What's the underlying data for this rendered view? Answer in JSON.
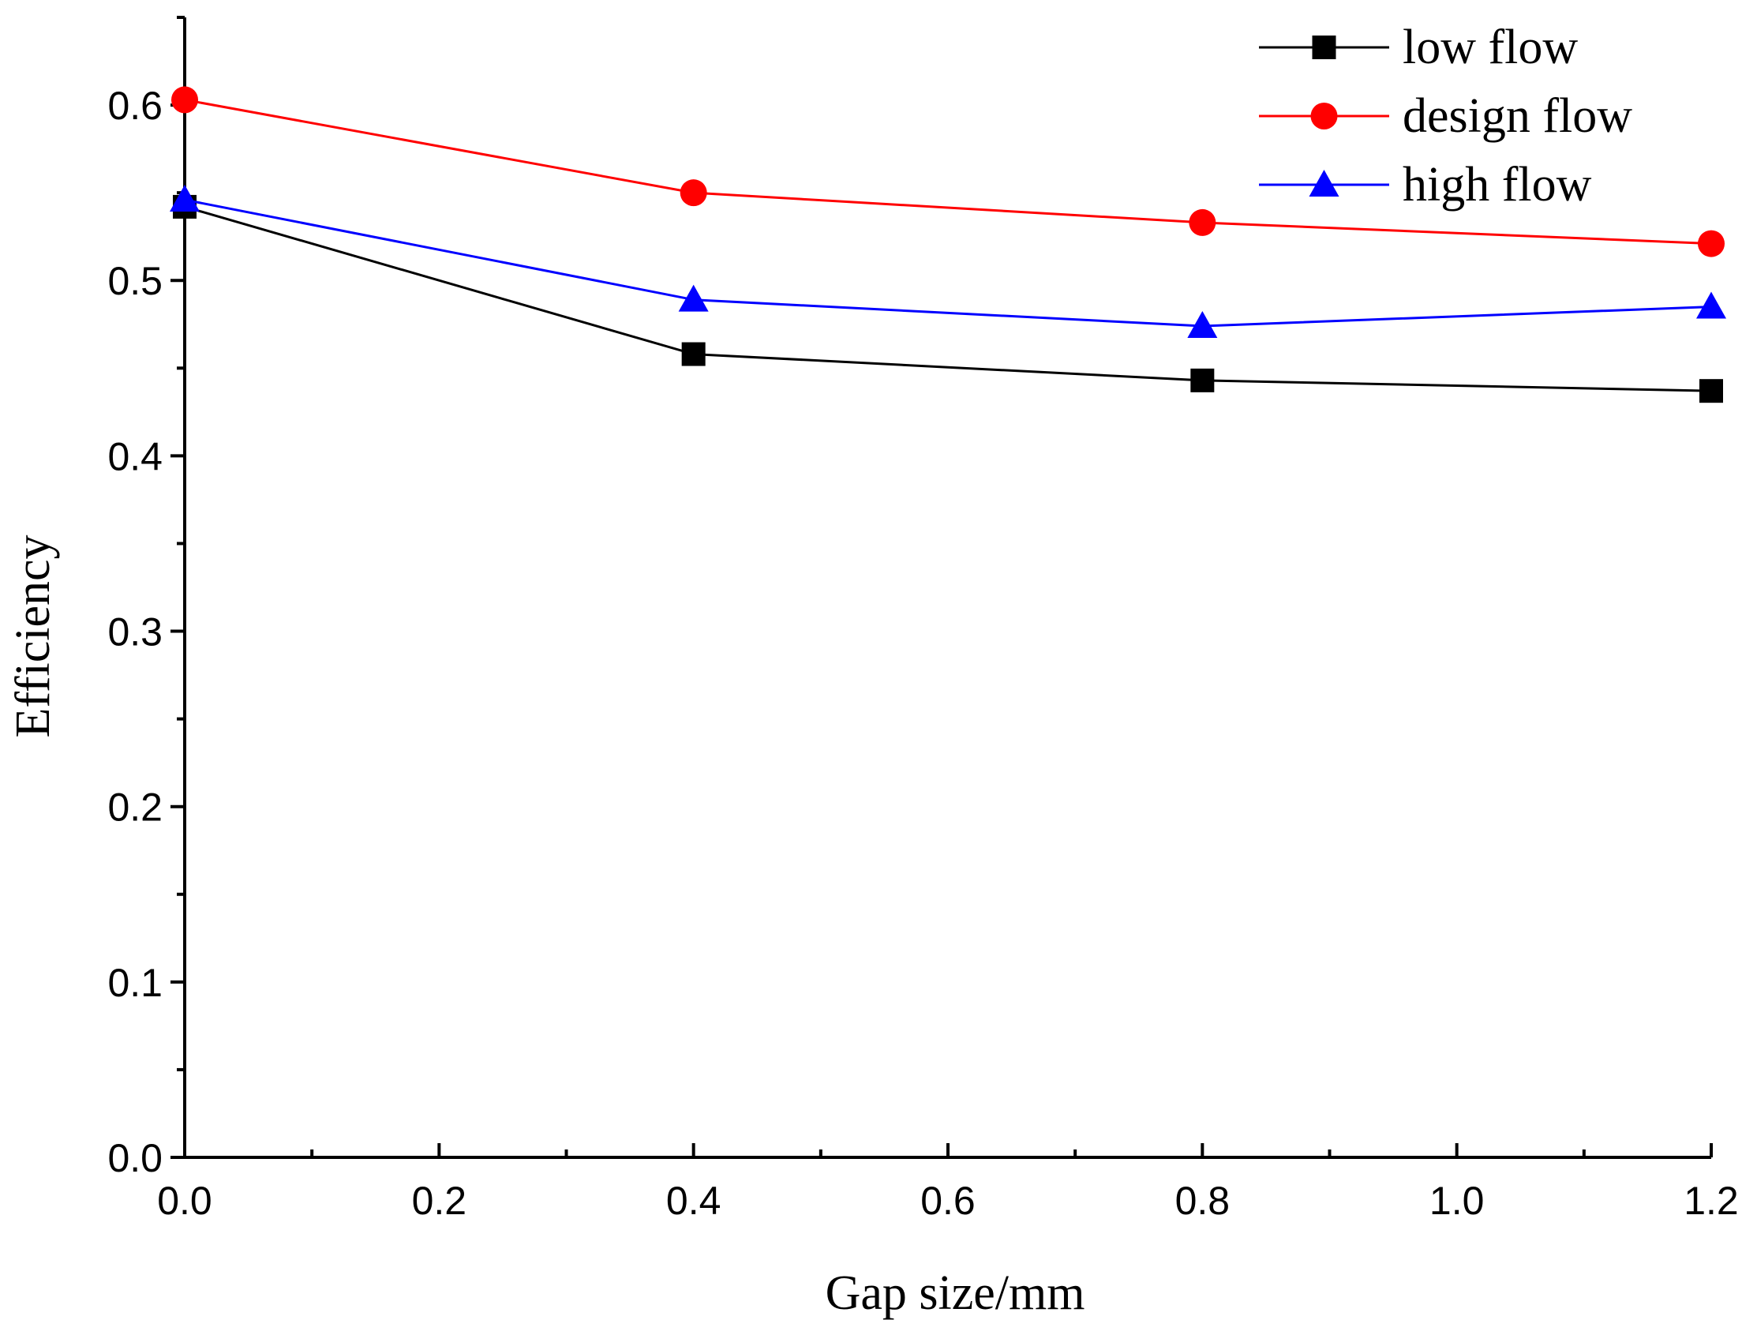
{
  "chart_data": {
    "type": "line",
    "title": "",
    "xlabel": "Gap size/mm",
    "ylabel": "Efficiency",
    "xlim": [
      0.0,
      1.2
    ],
    "ylim": [
      0.0,
      0.65
    ],
    "x": [
      0.0,
      0.4,
      0.8,
      1.2
    ],
    "x_ticks": [
      0.0,
      0.2,
      0.4,
      0.6,
      0.8,
      1.0,
      1.2
    ],
    "x_tick_labels": [
      "0.0",
      "0.2",
      "0.4",
      "0.6",
      "0.8",
      "1.0",
      "1.2"
    ],
    "y_ticks": [
      0.0,
      0.1,
      0.2,
      0.3,
      0.4,
      0.5,
      0.6
    ],
    "y_tick_labels": [
      "0.0",
      "0.1",
      "0.2",
      "0.3",
      "0.4",
      "0.5",
      "0.6"
    ],
    "grid": false,
    "legend_position": "top-right",
    "series": [
      {
        "name": "low flow",
        "marker": "square",
        "color": "#000000",
        "values": [
          0.542,
          0.458,
          0.443,
          0.437
        ]
      },
      {
        "name": "design flow",
        "marker": "circle",
        "color": "#ff0000",
        "values": [
          0.603,
          0.55,
          0.533,
          0.521
        ]
      },
      {
        "name": "high flow",
        "marker": "triangle",
        "color": "#0000ff",
        "values": [
          0.546,
          0.489,
          0.474,
          0.485
        ]
      }
    ]
  }
}
